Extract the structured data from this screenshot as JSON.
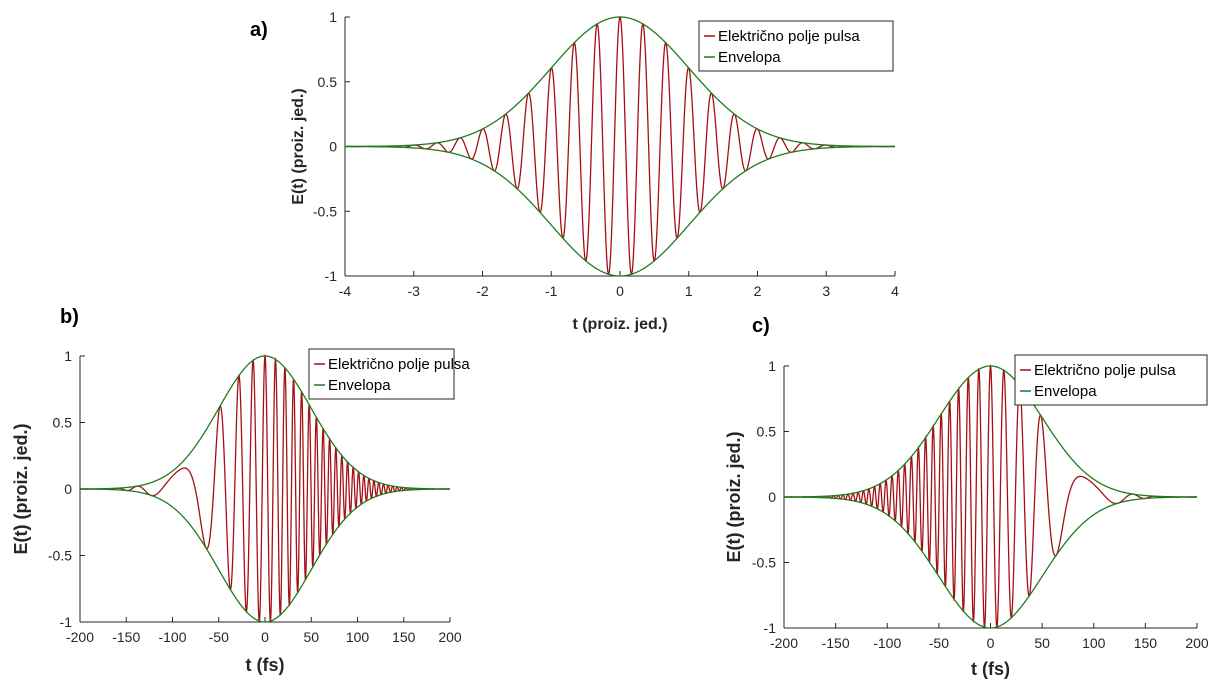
{
  "colors": {
    "field": "#a50f15",
    "envelope": "#1e7b1e",
    "axis": "#262626"
  },
  "chart_data": [
    {
      "panel_label": "a)",
      "type": "line",
      "function": "gaussian-pulse",
      "xlabel": "t (proiz. jed.)",
      "ylabel": "E(t) (proiz. jed.)",
      "xlim": [
        -4,
        4
      ],
      "ylim": [
        -1,
        1
      ],
      "xticks": [
        -4,
        -3,
        -2,
        -1,
        0,
        1,
        2,
        3,
        4
      ],
      "yticks": [
        -1,
        -0.5,
        0,
        0.5,
        1
      ],
      "ytick_labels": [
        "-1",
        "-0.5",
        "0",
        "0.5",
        "1"
      ],
      "grid": false,
      "legend_position": "top-right",
      "pulse": {
        "envelope_sigma": 1.0,
        "carrier_period": 0.333,
        "chirp": 0
      },
      "series": [
        {
          "name": "Električno polje pulsa",
          "color": "#a50f15"
        },
        {
          "name": "Envelopa",
          "color": "#1e7b1e"
        }
      ]
    },
    {
      "panel_label": "b)",
      "type": "line",
      "function": "chirped-gaussian-pulse",
      "xlabel": "t (fs)",
      "ylabel": "E(t) (proiz. jed.)",
      "xlim": [
        -200,
        200
      ],
      "ylim": [
        -1,
        1
      ],
      "xticks": [
        -200,
        -150,
        -100,
        -50,
        0,
        50,
        100,
        150,
        200
      ],
      "yticks": [
        -1,
        -0.5,
        0,
        0.5,
        1
      ],
      "ytick_labels": [
        "-1",
        "-0.5",
        "0",
        "0.5",
        "1"
      ],
      "grid": false,
      "legend_position": "top-right",
      "pulse": {
        "envelope_sigma": 50,
        "carrier_period": 12,
        "chirp": 0.0028
      },
      "series": [
        {
          "name": "Električno polje pulsa",
          "color": "#a50f15"
        },
        {
          "name": "Envelopa",
          "color": "#1e7b1e"
        }
      ]
    },
    {
      "panel_label": "c)",
      "type": "line",
      "function": "chirped-gaussian-pulse",
      "xlabel": "t (fs)",
      "ylabel": "E(t) (proiz. jed.)",
      "xlim": [
        -200,
        200
      ],
      "ylim": [
        -1,
        1
      ],
      "xticks": [
        -200,
        -150,
        -100,
        -50,
        0,
        50,
        100,
        150,
        200
      ],
      "yticks": [
        -1,
        -0.5,
        0,
        0.5,
        1
      ],
      "ytick_labels": [
        "-1",
        "-0.5",
        "0",
        "0.5",
        "1"
      ],
      "grid": false,
      "legend_position": "top-right",
      "pulse": {
        "envelope_sigma": 50,
        "carrier_period": 12,
        "chirp": -0.0028
      },
      "series": [
        {
          "name": "Električno polje pulsa",
          "color": "#a50f15"
        },
        {
          "name": "Envelopa",
          "color": "#1e7b1e"
        }
      ]
    }
  ]
}
